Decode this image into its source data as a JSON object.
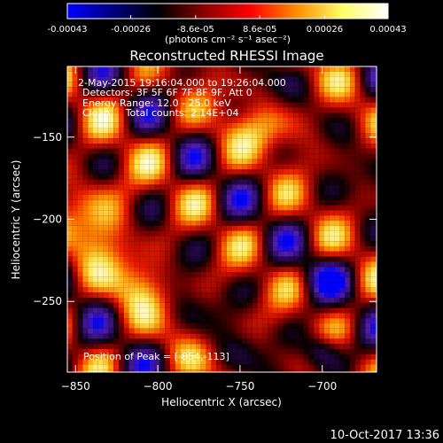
{
  "colorbar": {
    "ticks": [
      "-0.00043",
      "-0.00026",
      "-8.6e-05",
      "8.6e-05",
      "0.00026",
      "0.00043"
    ],
    "tick_values": [
      -0.00043,
      -0.00026,
      -8.6e-05,
      8.6e-05,
      0.00026,
      0.00043
    ],
    "range": [
      -0.00043,
      0.00043
    ],
    "unit_label": "(photons cm⁻² s⁻¹ asec⁻²)",
    "stops": [
      "#0000ff",
      "#000080",
      "#000000",
      "#8b0000",
      "#ff0000",
      "#ff8c00",
      "#ffff66",
      "#ffffff"
    ]
  },
  "chart_data": {
    "type": "heatmap",
    "title": "Reconstructed RHESSI Image",
    "xlabel": "Heliocentric X (arcsec)",
    "ylabel": "Heliocentric Y (arcsec)",
    "xlim": [
      -855,
      -667
    ],
    "ylim": [
      -293,
      -107
    ],
    "x_ticks": [
      -850,
      -800,
      -750,
      -700
    ],
    "x_tick_labels": [
      "−850",
      "−800",
      "−750",
      "−700"
    ],
    "y_ticks": [
      -150,
      -200,
      -250
    ],
    "y_tick_labels": [
      "−150",
      "−200",
      "−250"
    ],
    "grid": false,
    "color_scale": "diverging blue-black-red-yellow-white",
    "annotations": [
      "2-May-2015 19:16:04.000 to 19:26:04.000",
      "Detectors: 3F 5F 6F 7F 8F 9F, Att 0",
      "Energy Range: 12.0 - 25.0 keV",
      "Clean     Total counts: 2.14E+04"
    ],
    "peak_label": "Position of Peak = [-854,-113]",
    "peak_position": [
      -854,
      -113
    ]
  },
  "footer": {
    "timestamp": "10-Oct-2017 13:36"
  }
}
